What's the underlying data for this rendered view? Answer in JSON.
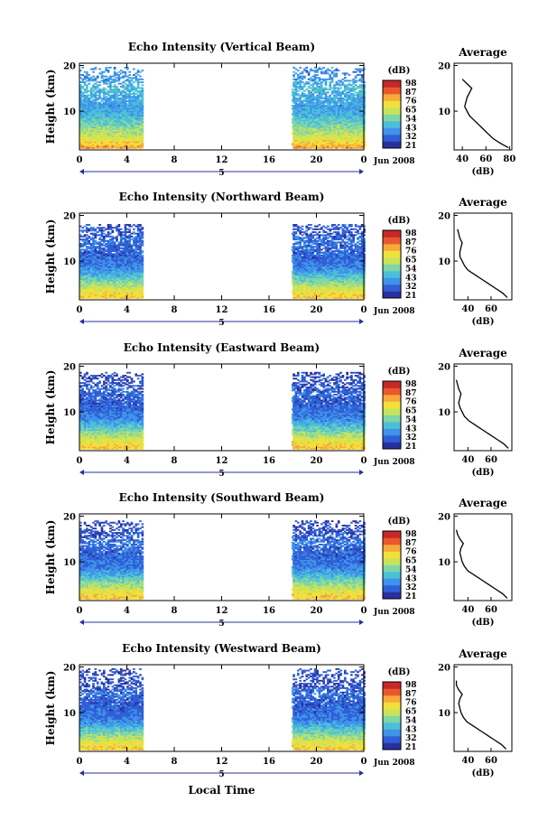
{
  "colorbar": {
    "unit_label": "(dB)",
    "ticks": [
      "98",
      "87",
      "76",
      "65",
      "54",
      "43",
      "32",
      "21"
    ],
    "colors": [
      "#2a2f9e",
      "#2f5fd6",
      "#3f93ea",
      "#4bbfd8",
      "#7fd6a6",
      "#c8e35a",
      "#f2e03a",
      "#f7a93a",
      "#e9582c",
      "#c62828"
    ]
  },
  "shared": {
    "ylabel": "Height (km)",
    "y_ticks": [
      "20",
      "10"
    ],
    "x_ticks": [
      "0",
      "4",
      "8",
      "12",
      "16",
      "20",
      "0"
    ],
    "date_label": "Jun 2008",
    "day_label": "5",
    "xlabel": "Local Time",
    "avg_ylabel": "(dB)",
    "avg_title": "Average",
    "avg_y_ticks": [
      "20",
      "10"
    ]
  },
  "chart_data": [
    {
      "type": "heatmap",
      "title": "Echo Intensity (Vertical Beam)",
      "xlim": [
        0,
        24
      ],
      "ylim": [
        1.5,
        20.5
      ],
      "data_ranges_hours": [
        [
          0,
          5.4
        ],
        [
          18,
          24
        ]
      ],
      "top_valid_km": 19.5,
      "profile": {
        "type": "line",
        "title": "Average",
        "xlim": [
          33,
          82
        ],
        "x_ticks": [
          "40",
          "60",
          "80"
        ],
        "x_db": [
          79,
          72,
          66,
          62,
          58,
          54,
          50,
          46,
          44,
          42,
          43,
          44,
          46,
          48,
          44,
          40
        ],
        "y_km": [
          2,
          3,
          4,
          5,
          6,
          7,
          8,
          9,
          10,
          11,
          12,
          13,
          14,
          15,
          16,
          17
        ]
      }
    },
    {
      "type": "heatmap",
      "title": "Echo Intensity (Northward Beam)",
      "xlim": [
        0,
        24
      ],
      "ylim": [
        1.5,
        20.5
      ],
      "data_ranges_hours": [
        [
          0,
          5.4
        ],
        [
          18,
          24
        ]
      ],
      "top_valid_km": 18,
      "profile": {
        "type": "line",
        "title": "Average",
        "xlim": [
          28,
          78
        ],
        "x_ticks": [
          "40",
          "60"
        ],
        "x_db": [
          74,
          70,
          64,
          58,
          52,
          46,
          40,
          37,
          35,
          33,
          33,
          34,
          35,
          33,
          32,
          31
        ],
        "y_km": [
          2,
          3,
          4,
          5,
          6,
          7,
          8,
          9,
          10,
          11,
          12,
          13,
          14,
          15,
          16,
          17
        ]
      }
    },
    {
      "type": "heatmap",
      "title": "Echo Intensity (Eastward Beam)",
      "xlim": [
        0,
        24
      ],
      "ylim": [
        1.5,
        20.5
      ],
      "data_ranges_hours": [
        [
          0,
          5.4
        ],
        [
          18,
          24
        ]
      ],
      "top_valid_km": 18.5,
      "profile": {
        "type": "line",
        "title": "Average",
        "xlim": [
          28,
          78
        ],
        "x_ticks": [
          "40",
          "60"
        ],
        "x_db": [
          75,
          71,
          65,
          59,
          53,
          47,
          41,
          37,
          35,
          33,
          32,
          33,
          34,
          32,
          31,
          30
        ],
        "y_km": [
          2,
          3,
          4,
          5,
          6,
          7,
          8,
          9,
          10,
          11,
          12,
          13,
          14,
          15,
          16,
          17
        ]
      }
    },
    {
      "type": "heatmap",
      "title": "Echo Intensity (Southward Beam)",
      "xlim": [
        0,
        24
      ],
      "ylim": [
        1.5,
        20.5
      ],
      "data_ranges_hours": [
        [
          0,
          5.4
        ],
        [
          18,
          24
        ]
      ],
      "top_valid_km": 19,
      "profile": {
        "type": "line",
        "title": "Average",
        "xlim": [
          28,
          78
        ],
        "x_ticks": [
          "40",
          "60"
        ],
        "x_db": [
          74,
          70,
          64,
          58,
          52,
          46,
          40,
          37,
          35,
          34,
          33,
          34,
          36,
          33,
          31,
          30
        ],
        "y_km": [
          2,
          3,
          4,
          5,
          6,
          7,
          8,
          9,
          10,
          11,
          12,
          13,
          14,
          15,
          16,
          17
        ]
      }
    },
    {
      "type": "heatmap",
      "title": "Echo Intensity (Westward Beam)",
      "xlim": [
        0,
        24
      ],
      "ylim": [
        1.5,
        20.5
      ],
      "data_ranges_hours": [
        [
          0,
          5.4
        ],
        [
          18,
          24
        ]
      ],
      "top_valid_km": 19.5,
      "profile": {
        "type": "line",
        "title": "Average",
        "xlim": [
          28,
          78
        ],
        "x_ticks": [
          "40",
          "60"
        ],
        "x_db": [
          73,
          69,
          63,
          57,
          51,
          45,
          39,
          36,
          34,
          33,
          32,
          33,
          35,
          32,
          30,
          30
        ],
        "y_km": [
          2,
          3,
          4,
          5,
          6,
          7,
          8,
          9,
          10,
          11,
          12,
          13,
          14,
          15,
          16,
          17
        ]
      }
    }
  ]
}
